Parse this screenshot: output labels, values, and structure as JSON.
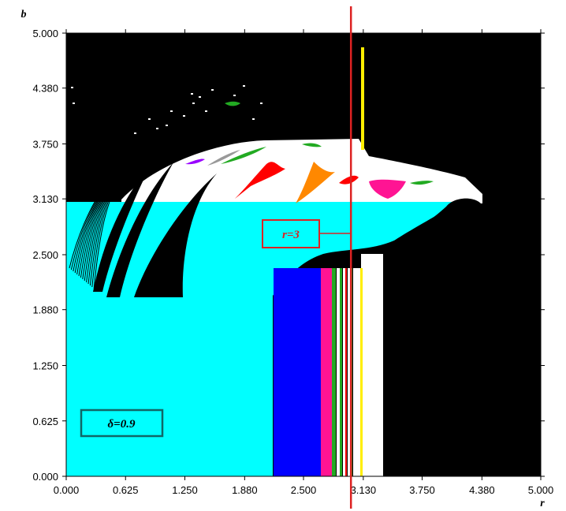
{
  "chart_data": {
    "type": "heatmap",
    "title": "",
    "xlabel": "r",
    "ylabel": "b",
    "xlim": [
      0,
      5
    ],
    "ylim": [
      0,
      5
    ],
    "x_ticks": [
      "0.000",
      "0.625",
      "1.250",
      "1.880",
      "2.500",
      "3.130",
      "3.750",
      "4.380",
      "5.000"
    ],
    "y_ticks": [
      "0.000",
      "0.625",
      "1.250",
      "1.880",
      "2.500",
      "3.130",
      "3.750",
      "4.380",
      "5.000"
    ],
    "annotations": [
      {
        "text": "r=3",
        "marks": "vertical line at r=3",
        "x": 3.0,
        "color": "#dd2222"
      },
      {
        "text": "δ=0.9",
        "color": "#000000"
      }
    ],
    "colors": {
      "region_main": "#00ffff",
      "region_chaos": "#000000",
      "background": "#ffffff",
      "blue": "#0000ff",
      "magenta": "#ff1493",
      "green": "#22aa22",
      "red": "#ff0000",
      "orange": "#ff8800",
      "yellow": "#ffee00",
      "purple": "#9900ff",
      "gray": "#999999",
      "annotation": "#dd2222",
      "box_border": "#116666"
    }
  }
}
